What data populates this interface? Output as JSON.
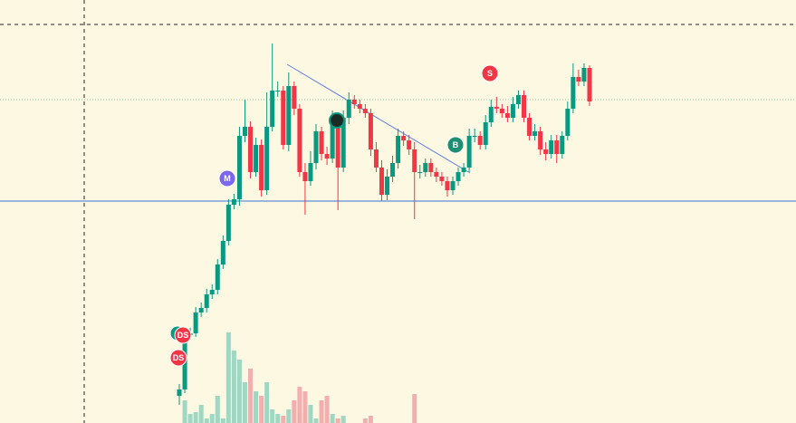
{
  "chart_data": {
    "type": "candlestick",
    "ylim": [
      0,
      467
    ],
    "up_color": "#089981",
    "down_color": "#f23645",
    "volume_up_color": "#9fd7c2",
    "volume_down_color": "#f3aeae",
    "open": [
      30,
      37,
      97,
      99,
      122,
      127,
      142,
      147,
      175,
      201,
      241,
      247,
      317,
      327,
      277,
      307,
      257,
      327,
      367,
      367,
      307,
      372,
      347,
      277,
      267,
      287,
      322,
      297,
      292,
      337,
      282,
      337,
      357,
      352,
      347,
      342,
      302,
      282,
      252,
      272,
      287,
      317,
      312,
      302,
      277,
      277,
      287,
      277,
      272,
      267,
      257,
      267,
      277,
      282,
      317,
      317,
      307,
      332,
      349,
      347,
      342,
      337,
      352,
      362,
      337,
      317,
      322,
      302,
      297,
      312,
      297,
      317,
      347,
      382,
      377,
      392
    ],
    "high": [
      43,
      103,
      105,
      128,
      133,
      148,
      153,
      181,
      207,
      247,
      253,
      327,
      357,
      333,
      315,
      313,
      365,
      419,
      377,
      372,
      387,
      377,
      352,
      287,
      300,
      330,
      327,
      305,
      345,
      342,
      345,
      365,
      362,
      357,
      352,
      347,
      310,
      290,
      280,
      295,
      325,
      322,
      318,
      310,
      285,
      292,
      292,
      282,
      277,
      272,
      272,
      282,
      287,
      325,
      325,
      322,
      340,
      357,
      360,
      352,
      350,
      360,
      367,
      367,
      342,
      330,
      327,
      310,
      318,
      318,
      322,
      355,
      397,
      390,
      397,
      395
    ],
    "low": [
      20,
      33,
      92,
      95,
      117,
      122,
      137,
      142,
      170,
      196,
      236,
      240,
      310,
      270,
      272,
      250,
      252,
      322,
      360,
      302,
      300,
      340,
      272,
      230,
      262,
      280,
      290,
      285,
      287,
      235,
      277,
      330,
      347,
      342,
      337,
      295,
      277,
      245,
      246,
      266,
      281,
      306,
      296,
      225,
      270,
      272,
      272,
      266,
      262,
      250,
      252,
      262,
      272,
      277,
      310,
      302,
      302,
      327,
      342,
      337,
      332,
      332,
      347,
      332,
      312,
      312,
      296,
      290,
      292,
      287,
      292,
      312,
      342,
      372,
      372,
      350
    ],
    "close": [
      37,
      97,
      99,
      122,
      127,
      142,
      147,
      175,
      201,
      241,
      247,
      317,
      327,
      277,
      307,
      257,
      327,
      367,
      367,
      307,
      372,
      347,
      277,
      267,
      287,
      322,
      297,
      292,
      337,
      282,
      337,
      357,
      352,
      347,
      342,
      302,
      282,
      252,
      272,
      287,
      317,
      312,
      302,
      277,
      277,
      287,
      277,
      272,
      267,
      257,
      267,
      277,
      282,
      317,
      317,
      307,
      332,
      349,
      347,
      342,
      337,
      352,
      362,
      337,
      317,
      322,
      302,
      297,
      312,
      297,
      317,
      347,
      382,
      377,
      392,
      355
    ],
    "volume": [
      0,
      25,
      10,
      12,
      20,
      5,
      10,
      30,
      5,
      100,
      80,
      70,
      45,
      60,
      35,
      30,
      45,
      15,
      10,
      8,
      15,
      25,
      40,
      35,
      20,
      5,
      25,
      30,
      10,
      5,
      8,
      0,
      0,
      0,
      5,
      8,
      0,
      0,
      0,
      0,
      0,
      0,
      0,
      32,
      0,
      0,
      0,
      0,
      0,
      0,
      0,
      0,
      0,
      0,
      0,
      0,
      0,
      0,
      0,
      0,
      0,
      0,
      0,
      0,
      0,
      0,
      0,
      0,
      0,
      0,
      0,
      0,
      0,
      0,
      0,
      0
    ],
    "markers": [
      {
        "label": "M",
        "color": "#7b68ee"
      },
      {
        "label": "S",
        "color": "#f23645"
      },
      {
        "label": "B",
        "color": "#1e8f72"
      },
      {
        "label": "DS",
        "color": "#f23645"
      },
      {
        "label": "DS",
        "color": "#f23645"
      }
    ]
  }
}
